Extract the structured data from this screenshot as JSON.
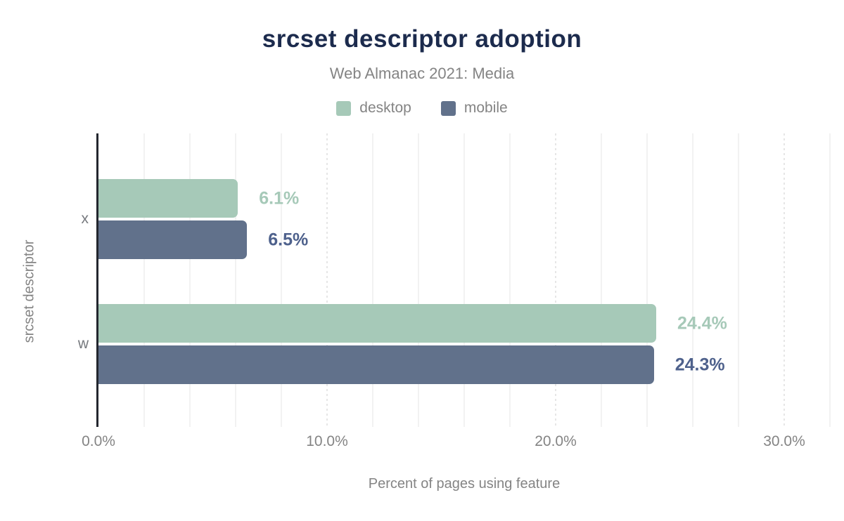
{
  "header": {
    "title": "srcset descriptor adoption",
    "subtitle": "Web Almanac 2021: Media"
  },
  "legend": {
    "items": [
      {
        "label": "desktop",
        "color": "#a6c9b8"
      },
      {
        "label": "mobile",
        "color": "#61718b"
      }
    ]
  },
  "chart_data": {
    "type": "bar",
    "orientation": "horizontal",
    "title": "srcset descriptor adoption",
    "subtitle": "Web Almanac 2021: Media",
    "categories": [
      "x",
      "w"
    ],
    "series": [
      {
        "name": "desktop",
        "values": [
          6.1,
          24.4
        ],
        "value_labels": [
          "6.1%",
          "24.4%"
        ],
        "bar_color": "#a6c9b8",
        "label_color": "#a6c9b8"
      },
      {
        "name": "mobile",
        "values": [
          6.5,
          24.3
        ],
        "value_labels": [
          "6.5%",
          "24.3%"
        ],
        "bar_color": "#61718b",
        "label_color": "#4e618c"
      }
    ],
    "xlabel": "Percent of pages using feature",
    "ylabel": "srcset descriptor",
    "x_ticks": [
      {
        "value": 0,
        "label": "0.0%"
      },
      {
        "value": 10,
        "label": "10.0%"
      },
      {
        "value": 20,
        "label": "20.0%"
      },
      {
        "value": 30,
        "label": "30.0%"
      }
    ],
    "xlim": [
      0,
      32
    ],
    "grid": {
      "minor_step": 2,
      "major_step": 10,
      "axis": "x"
    },
    "legend_position": "top"
  },
  "colors": {
    "title_text": "#1c2b4d",
    "muted_text": "#848484",
    "category_text": "#76797e",
    "axis_line": "#23262e",
    "grid_minor": "#f2f2f2",
    "grid_major": "#e6e6e6",
    "background": "#ffffff"
  }
}
